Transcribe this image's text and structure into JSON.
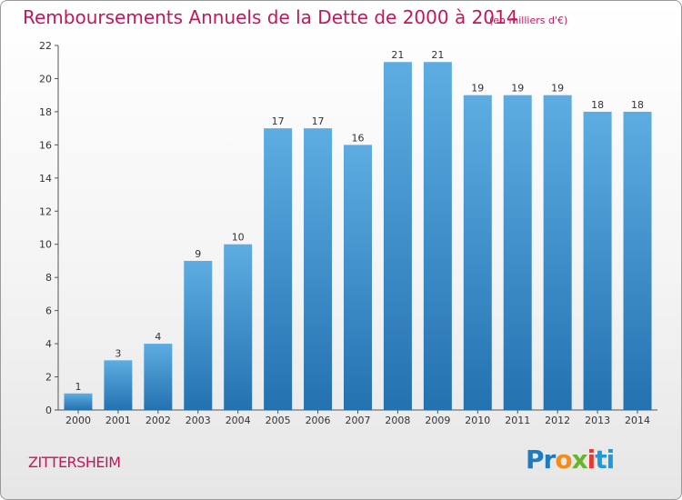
{
  "chart_data": {
    "type": "bar",
    "title": "Remboursements Annuels de la Dette de 2000 à 2014",
    "unit_note": "(en milliers d'€)",
    "categories": [
      "2000",
      "2001",
      "2002",
      "2003",
      "2004",
      "2005",
      "2006",
      "2007",
      "2008",
      "2009",
      "2010",
      "2011",
      "2012",
      "2013",
      "2014"
    ],
    "values": [
      1,
      3,
      4,
      9,
      10,
      17,
      17,
      16,
      21,
      21,
      19,
      19,
      19,
      18,
      18
    ],
    "ylim": [
      0,
      22
    ],
    "yticks": [
      0,
      2,
      4,
      6,
      8,
      10,
      12,
      14,
      16,
      18,
      20,
      22
    ],
    "xlabel": "",
    "ylabel": "",
    "grid": false,
    "bar_color_top": "#5dade2",
    "bar_color_bottom": "#2471b0"
  },
  "footer": {
    "commune": "ZITTERSHEIM",
    "logo_text": [
      "Pr",
      "o",
      "x",
      "i",
      "ti"
    ]
  },
  "colors": {
    "accent": "#c2185b"
  }
}
